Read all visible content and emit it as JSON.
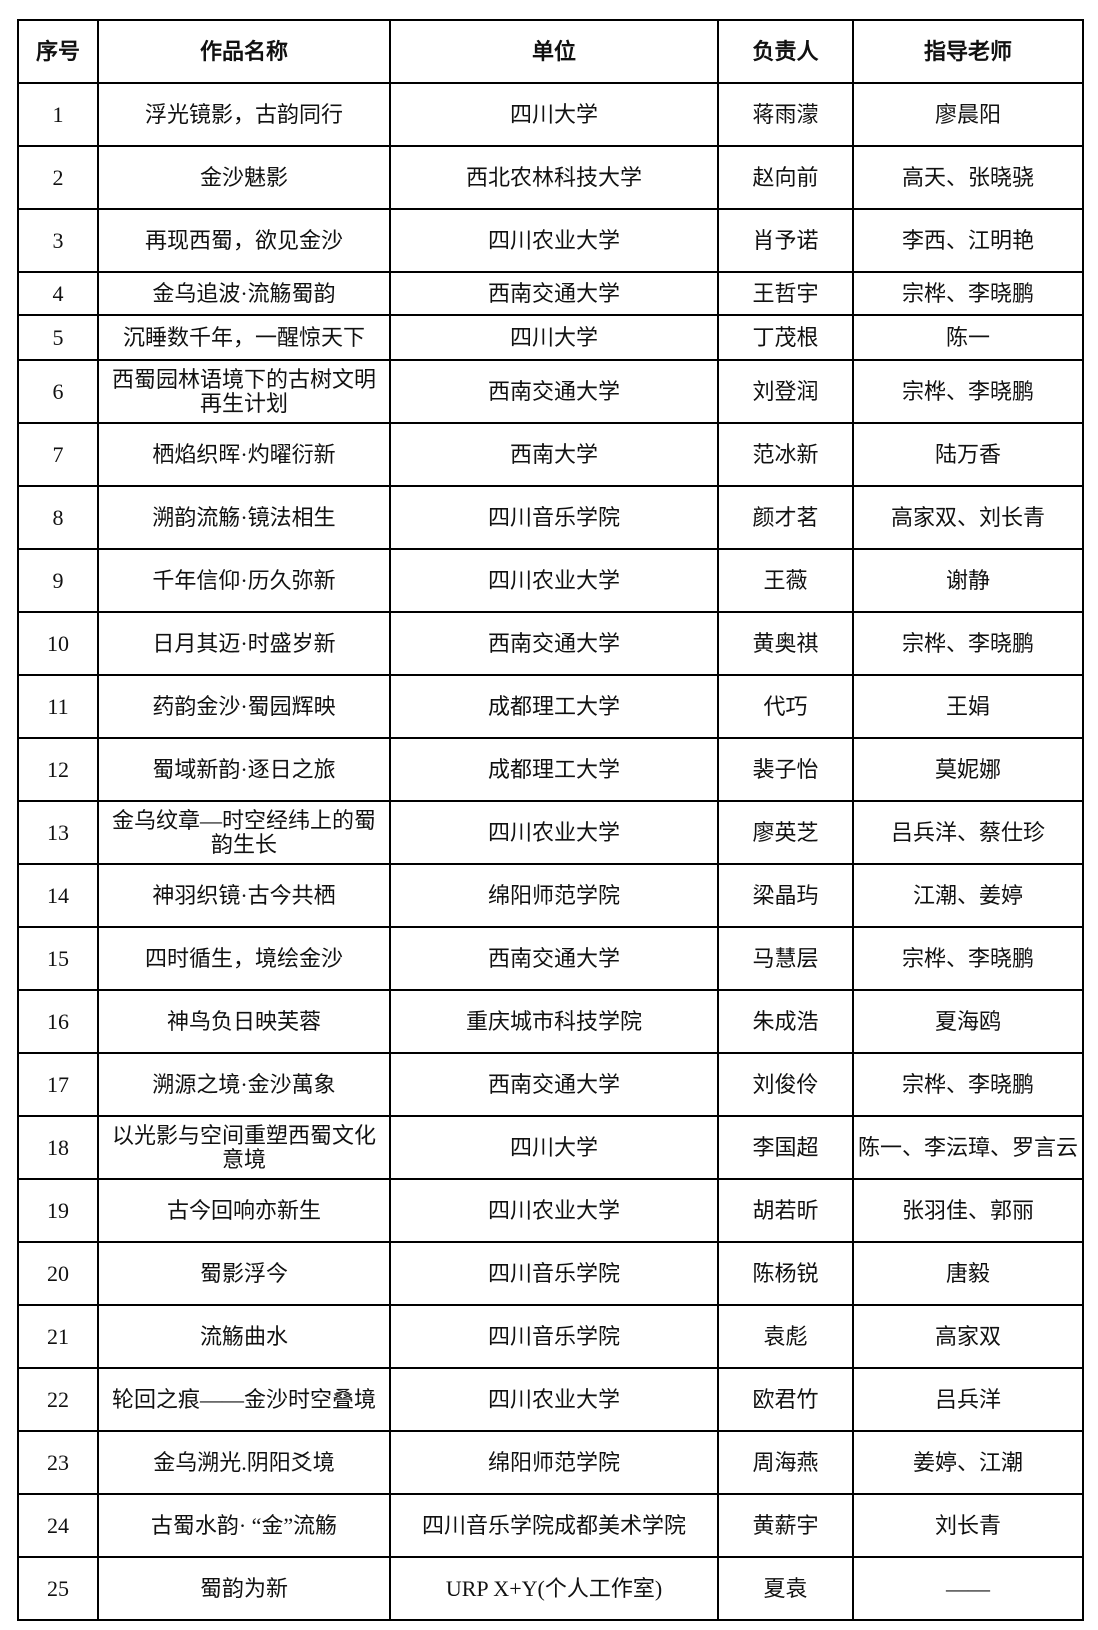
{
  "table": {
    "headers": [
      "序号",
      "作品名称",
      "单位",
      "负责人",
      "指导老师"
    ],
    "rows": [
      [
        "1",
        "浮光镜影，古韵同行",
        "四川大学",
        "蒋雨濛",
        "廖晨阳"
      ],
      [
        "2",
        "金沙魅影",
        "西北农林科技大学",
        "赵向前",
        "高天、张晓骁"
      ],
      [
        "3",
        "再现西蜀，欲见金沙",
        "四川农业大学",
        "肖予诺",
        "李西、江明艳"
      ],
      [
        "4",
        "金乌追波·流觞蜀韵",
        "西南交通大学",
        "王哲宇",
        "宗桦、李晓鹏"
      ],
      [
        "5",
        "沉睡数千年，一醒惊天下",
        "四川大学",
        "丁茂根",
        "陈一"
      ],
      [
        "6",
        "西蜀园林语境下的古树文明再生计划",
        "西南交通大学",
        "刘登润",
        "宗桦、李晓鹏"
      ],
      [
        "7",
        "栖焰织晖·灼曜衍新",
        "西南大学",
        "范冰新",
        "陆万香"
      ],
      [
        "8",
        "溯韵流觞·镜法相生",
        "四川音乐学院",
        "颜才茗",
        "高家双、刘长青"
      ],
      [
        "9",
        "千年信仰·历久弥新",
        "四川农业大学",
        "王薇",
        "谢静"
      ],
      [
        "10",
        "日月其迈·时盛岁新",
        "西南交通大学",
        "黄奥祺",
        "宗桦、李晓鹏"
      ],
      [
        "11",
        "药韵金沙·蜀园辉映",
        "成都理工大学",
        "代巧",
        "王娟"
      ],
      [
        "12",
        "蜀域新韵·逐日之旅",
        "成都理工大学",
        "裴子怡",
        "莫妮娜"
      ],
      [
        "13",
        "金乌纹章—时空经纬上的蜀韵生长",
        "四川农业大学",
        "廖英芝",
        "吕兵洋、蔡仕珍"
      ],
      [
        "14",
        "神羽织镜·古今共栖",
        "绵阳师范学院",
        "梁晶玙",
        "江潮、姜婷"
      ],
      [
        "15",
        "四时循生，境绘金沙",
        "西南交通大学",
        "马慧层",
        "宗桦、李晓鹏"
      ],
      [
        "16",
        "神鸟负日映芙蓉",
        "重庆城市科技学院",
        "朱成浩",
        "夏海鸥"
      ],
      [
        "17",
        "溯源之境·金沙萬象",
        "西南交通大学",
        "刘俊伶",
        "宗桦、李晓鹏"
      ],
      [
        "18",
        "以光影与空间重塑西蜀文化意境",
        "四川大学",
        "李国超",
        "陈一、李沄璋、罗言云"
      ],
      [
        "19",
        "古今回响亦新生",
        "四川农业大学",
        "胡若昕",
        "张羽佳、郭丽"
      ],
      [
        "20",
        "蜀影浮今",
        "四川音乐学院",
        "陈杨锐",
        "唐毅"
      ],
      [
        "21",
        "流觞曲水",
        "四川音乐学院",
        "袁彪",
        "高家双"
      ],
      [
        "22",
        "轮回之痕——金沙时空叠境",
        "四川农业大学",
        "欧君竹",
        "吕兵洋"
      ],
      [
        "23",
        "金乌溯光.阴阳爻境",
        "绵阳师范学院",
        "周海燕",
        "姜婷、江潮"
      ],
      [
        "24",
        "古蜀水韵· “金”流觞",
        "四川音乐学院成都美术学院",
        "黄薪宇",
        "刘长青"
      ],
      [
        "25",
        "蜀韵为新",
        "URP  X+Y(个人工作室)",
        "夏袁",
        "——"
      ]
    ]
  }
}
